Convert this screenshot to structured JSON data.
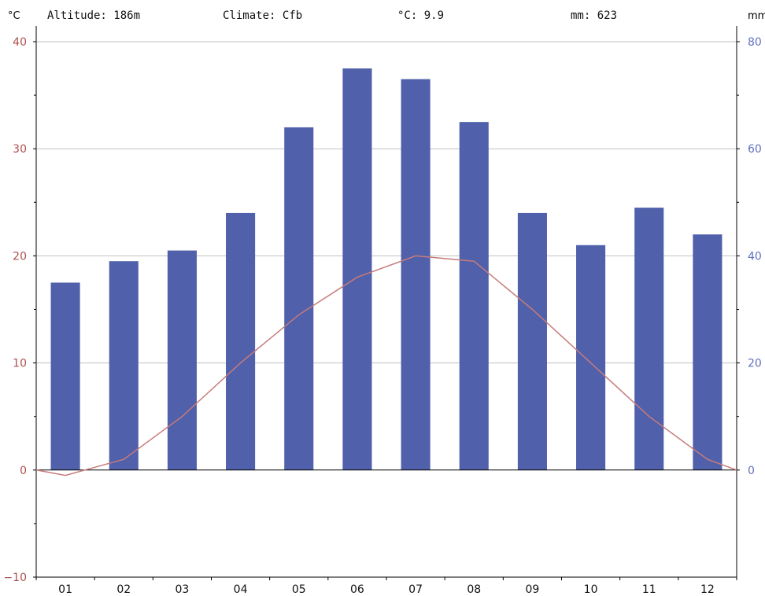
{
  "header": {
    "altitude": "Altitude: 186m",
    "climate": "Climate: Cfb",
    "temp": "°C: 9.9",
    "precip": "mm: 623"
  },
  "colors": {
    "temperature": "#c77b7b",
    "precipitation": "#5060aa",
    "left_axis_text": "#b05050",
    "right_axis_text": "#6070c0",
    "grid": "#c0c0c0",
    "axis": "#000000"
  },
  "chart_data": {
    "type": "bar",
    "categories": [
      "01",
      "02",
      "03",
      "04",
      "05",
      "06",
      "07",
      "08",
      "09",
      "10",
      "11",
      "12"
    ],
    "left_axis": {
      "unit": "°C",
      "ylim": [
        -10,
        40
      ],
      "ticks": [
        "40",
        "30",
        "20",
        "10",
        "0",
        "−10"
      ],
      "tick_values": [
        40,
        30,
        20,
        10,
        0,
        -10
      ]
    },
    "right_axis": {
      "unit": "mm",
      "ylim": [
        -20,
        80
      ],
      "ticks": [
        "80",
        "60",
        "40",
        "20",
        "0"
      ],
      "tick_values": [
        80,
        60,
        40,
        20,
        0
      ]
    },
    "grid": true,
    "series": [
      {
        "kind": "bar",
        "axis": "right",
        "values": [
          35,
          39,
          41,
          48,
          64,
          75,
          73,
          65,
          48,
          42,
          49,
          44
        ]
      },
      {
        "kind": "line",
        "axis": "left",
        "values": [
          -0.5,
          1.0,
          5.0,
          10.0,
          14.5,
          18.0,
          20.0,
          19.5,
          15.0,
          10.0,
          5.0,
          1.0
        ]
      }
    ]
  }
}
